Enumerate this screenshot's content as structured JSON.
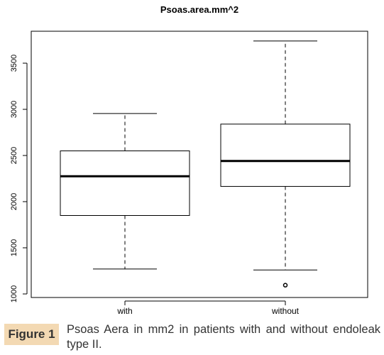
{
  "chart_data": {
    "type": "box",
    "title": "Psoas.area.mm^2",
    "xlabel": "",
    "ylabel": "",
    "categories": [
      "with",
      "without"
    ],
    "ylim": [
      1000,
      3750
    ],
    "yticks": [
      "1000",
      "1500",
      "2000",
      "2500",
      "3000",
      "3500"
    ],
    "boxes": [
      {
        "label": "with",
        "whisker_low": 1270,
        "q1": 1850,
        "median": 2275,
        "q3": 2550,
        "whisker_high": 2955,
        "outliers": []
      },
      {
        "label": "without",
        "whisker_low": 1260,
        "q1": 2165,
        "median": 2440,
        "q3": 2840,
        "whisker_high": 3740,
        "outliers": [
          1095
        ]
      }
    ],
    "grid": false
  },
  "caption": {
    "label": "Figure 1",
    "text": "Psoas Aera in mm2 in patients with and without endoleak type II."
  },
  "colors": {
    "caption_label_bg": "#f3d9b3",
    "caption_text": "#333333"
  }
}
